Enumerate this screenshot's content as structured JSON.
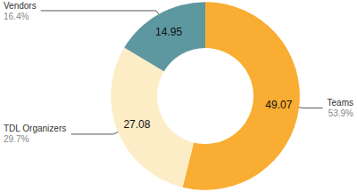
{
  "chart_data": {
    "type": "pie",
    "donut": true,
    "categories": [
      "Teams",
      "TDL Organizers",
      "Vendors"
    ],
    "values": [
      49.07,
      27.08,
      14.95
    ],
    "percent_labels": [
      "53.9%",
      "29.7%",
      "16.4%"
    ],
    "colors": [
      "#f9ad32",
      "#fdedc6",
      "#5d979f"
    ],
    "data_labels": true
  }
}
